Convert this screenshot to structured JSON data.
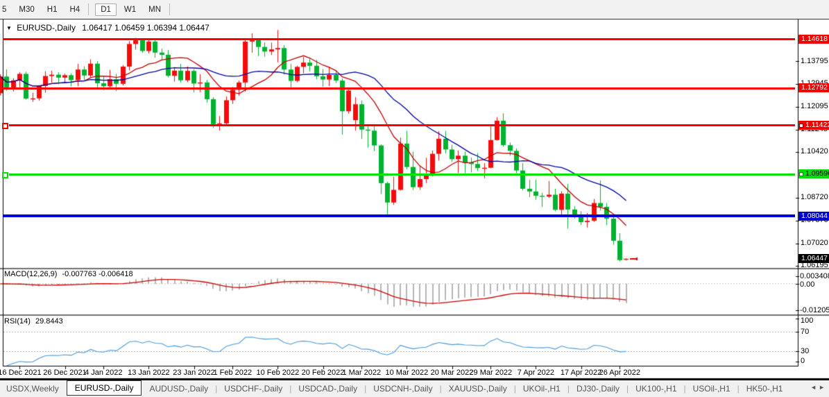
{
  "toolbar": {
    "timeframes": [
      "5",
      "M30",
      "H1",
      "H4",
      "D1",
      "W1",
      "MN"
    ],
    "active_timeframe": "D1"
  },
  "chart": {
    "title_symbol": "EURUSD-,Daily",
    "title_ohlc": "1.06417 1.06459 1.06394 1.06447"
  },
  "macd_panel": {
    "label": "MACD(12,26,9)",
    "values": "-0.007763 -0.006418",
    "axis_ticks": [
      "0.003408",
      "0.00",
      "-0.012058"
    ]
  },
  "rsi_panel": {
    "label": "RSI(14)",
    "value": "29.8443",
    "axis_ticks": [
      "100",
      "70",
      "30",
      "0"
    ]
  },
  "price_axis": {
    "plain_ticks": [
      "1.13795",
      "1.12945",
      "1.12095",
      "1.11245",
      "1.10420",
      "1.08720",
      "1.07870",
      "1.07020",
      "1.06195"
    ],
    "line_labels": [
      {
        "text": "1.14618",
        "bg": "#f40000",
        "fg": "#ffffff",
        "value": 1.14618,
        "handle": false
      },
      {
        "text": "1.12792",
        "bg": "#f40000",
        "fg": "#ffffff",
        "value": 1.12792,
        "handle": false
      },
      {
        "text": "1.11422",
        "bg": "#f40000",
        "fg": "#ffffff",
        "value": 1.11422,
        "handle": true
      },
      {
        "text": "1.09596",
        "bg": "#00dd00",
        "fg": "#000000",
        "value": 1.09596,
        "handle": true
      },
      {
        "text": "1.08044",
        "bg": "#0202d6",
        "fg": "#ffffff",
        "value": 1.08044,
        "handle": false
      },
      {
        "text": "1.06447",
        "bg": "#000000",
        "fg": "#ffffff",
        "value": 1.06447,
        "handle": false
      }
    ]
  },
  "tabs": {
    "items": [
      "USDX,Weekly",
      "EURUSD-,Daily",
      "AUDUSD-,Daily",
      "USDCHF-,Daily",
      "USDCAD-,Daily",
      "USDCNH-,Daily",
      "XAUUSD-,Daily",
      "UKOil-,H1",
      "DJ30-,Daily",
      "UK100-,H1",
      "USOil-,H1",
      "HK50-,H1"
    ],
    "active_index": 1,
    "arrows": [
      "◄",
      "►"
    ]
  },
  "chart_data": {
    "type": "candlestick",
    "symbol": "EURUSD-",
    "timeframe": "Daily",
    "up_color": "#f40b0b",
    "down_color": "#00b22d",
    "candles": [
      [
        1.126,
        1.133,
        1.1252,
        1.1322
      ],
      [
        1.1322,
        1.1349,
        1.127,
        1.128
      ],
      [
        1.128,
        1.1316,
        1.1266,
        1.1308
      ],
      [
        1.1308,
        1.1338,
        1.1281,
        1.1332
      ],
      [
        1.1332,
        1.134,
        1.1236,
        1.124
      ],
      [
        1.124,
        1.1262,
        1.1228,
        1.1241
      ],
      [
        1.1241,
        1.129,
        1.1233,
        1.1287
      ],
      [
        1.1287,
        1.1342,
        1.1262,
        1.1324
      ],
      [
        1.1324,
        1.1344,
        1.1299,
        1.1329
      ],
      [
        1.1329,
        1.1338,
        1.1294,
        1.1318
      ],
      [
        1.1318,
        1.1333,
        1.1302,
        1.1327
      ],
      [
        1.1327,
        1.1334,
        1.1285,
        1.1309
      ],
      [
        1.1309,
        1.1369,
        1.1286,
        1.1348
      ],
      [
        1.1348,
        1.136,
        1.131,
        1.1326
      ],
      [
        1.1326,
        1.1386,
        1.132,
        1.137
      ],
      [
        1.137,
        1.1379,
        1.1279,
        1.1297
      ],
      [
        1.1297,
        1.1323,
        1.1272,
        1.1286
      ],
      [
        1.1286,
        1.1347,
        1.128,
        1.1312
      ],
      [
        1.1312,
        1.1332,
        1.1268,
        1.1295
      ],
      [
        1.1295,
        1.1365,
        1.1289,
        1.1359
      ],
      [
        1.1359,
        1.1454,
        1.1345,
        1.1443
      ],
      [
        1.1443,
        1.1466,
        1.1422,
        1.1457
      ],
      [
        1.1457,
        1.1464,
        1.141,
        1.1417
      ],
      [
        1.1417,
        1.146,
        1.1408,
        1.1452
      ],
      [
        1.1452,
        1.1459,
        1.1392,
        1.1411
      ],
      [
        1.1411,
        1.1426,
        1.1385,
        1.1403
      ],
      [
        1.1403,
        1.1421,
        1.1319,
        1.1325
      ],
      [
        1.1325,
        1.1357,
        1.1303,
        1.1344
      ],
      [
        1.1344,
        1.1369,
        1.13,
        1.1308
      ],
      [
        1.1308,
        1.136,
        1.1301,
        1.1343
      ],
      [
        1.1343,
        1.1349,
        1.1263,
        1.1296
      ],
      [
        1.1296,
        1.1331,
        1.1264,
        1.13
      ],
      [
        1.13,
        1.131,
        1.1225,
        1.1238
      ],
      [
        1.1238,
        1.1245,
        1.1131,
        1.1145
      ],
      [
        1.1145,
        1.1175,
        1.1121,
        1.1148
      ],
      [
        1.1148,
        1.1248,
        1.1141,
        1.1234
      ],
      [
        1.1234,
        1.1283,
        1.122,
        1.1273
      ],
      [
        1.1273,
        1.1307,
        1.1251,
        1.13
      ],
      [
        1.13,
        1.1465,
        1.1266,
        1.1452
      ],
      [
        1.1452,
        1.1483,
        1.1411,
        1.1458
      ],
      [
        1.1458,
        1.1462,
        1.1398,
        1.1432
      ],
      [
        1.1432,
        1.1449,
        1.1396,
        1.1415
      ],
      [
        1.1415,
        1.1448,
        1.1402,
        1.1423
      ],
      [
        1.1423,
        1.1495,
        1.1375,
        1.1428
      ],
      [
        1.1428,
        1.1439,
        1.1329,
        1.1348
      ],
      [
        1.1348,
        1.1369,
        1.128,
        1.1306
      ],
      [
        1.1306,
        1.1362,
        1.1301,
        1.1358
      ],
      [
        1.1358,
        1.1395,
        1.1334,
        1.1374
      ],
      [
        1.1374,
        1.1392,
        1.1341,
        1.1362
      ],
      [
        1.1362,
        1.1384,
        1.1312,
        1.1323
      ],
      [
        1.1323,
        1.135,
        1.1284,
        1.1311
      ],
      [
        1.1311,
        1.1359,
        1.1287,
        1.1328
      ],
      [
        1.1328,
        1.1344,
        1.1298,
        1.1307
      ],
      [
        1.1307,
        1.1315,
        1.1106,
        1.1193
      ],
      [
        1.1193,
        1.1274,
        1.1184,
        1.127
      ],
      [
        1.116,
        1.1246,
        1.1121,
        1.1219
      ],
      [
        1.1219,
        1.1233,
        1.109,
        1.1125
      ],
      [
        1.1125,
        1.1144,
        1.1058,
        1.1121
      ],
      [
        1.1121,
        1.1139,
        1.1045,
        1.1066
      ],
      [
        1.1066,
        1.107,
        1.0885,
        1.0926
      ],
      [
        1.0926,
        1.0931,
        1.0806,
        1.0854
      ],
      [
        1.0854,
        1.095,
        1.0845,
        1.0901
      ],
      [
        1.0901,
        1.1095,
        1.0899,
        1.1073
      ],
      [
        1.1073,
        1.1121,
        1.0977,
        1.0986
      ],
      [
        1.0986,
        1.1043,
        1.09,
        1.0911
      ],
      [
        1.0911,
        1.0992,
        1.0901,
        1.0941
      ],
      [
        1.0941,
        1.102,
        1.0926,
        1.0955
      ],
      [
        1.0955,
        1.1047,
        1.0951,
        1.1035
      ],
      [
        1.1035,
        1.1119,
        1.101,
        1.1091
      ],
      [
        1.1091,
        1.112,
        1.1037,
        1.1051
      ],
      [
        1.1051,
        1.1069,
        1.1005,
        1.1015
      ],
      [
        1.1015,
        1.1047,
        1.0963,
        1.1028
      ],
      [
        1.1028,
        1.1044,
        1.0963,
        1.1003
      ],
      [
        1.1003,
        1.1021,
        1.0966,
        1.0997
      ],
      [
        1.0997,
        1.1038,
        1.0971,
        1.0982
      ],
      [
        1.0982,
        1.1,
        1.0944,
        1.0983
      ],
      [
        1.0983,
        1.1137,
        1.0981,
        1.1086
      ],
      [
        1.1086,
        1.1171,
        1.1084,
        1.1158
      ],
      [
        1.1158,
        1.1185,
        1.1061,
        1.1067
      ],
      [
        1.1067,
        1.1077,
        1.1028,
        1.1046
      ],
      [
        1.1046,
        1.1055,
        1.0963,
        1.0973
      ],
      [
        1.0973,
        1.1,
        1.0899,
        1.0905
      ],
      [
        1.0905,
        1.0938,
        1.0874,
        1.0895
      ],
      [
        1.0895,
        1.0939,
        1.0864,
        1.0879
      ],
      [
        1.0879,
        1.089,
        1.0837,
        1.0876
      ],
      [
        1.0876,
        1.0934,
        1.0871,
        1.0883
      ],
      [
        1.0883,
        1.0905,
        1.0821,
        1.0827
      ],
      [
        1.0827,
        1.0896,
        1.0808,
        1.0887
      ],
      [
        1.0887,
        1.0923,
        1.0757,
        1.0828
      ],
      [
        1.0828,
        1.084,
        1.0795,
        1.0808
      ],
      [
        1.0808,
        1.0822,
        1.077,
        1.0781
      ],
      [
        1.0781,
        1.0815,
        1.0761,
        1.0786
      ],
      [
        1.0786,
        1.0867,
        1.0782,
        1.0852
      ],
      [
        1.0852,
        1.0936,
        1.0824,
        1.0838
      ],
      [
        1.0838,
        1.0852,
        1.077,
        1.0794
      ],
      [
        1.0794,
        1.081,
        1.0697,
        1.0712
      ],
      [
        1.0712,
        1.074,
        1.0635,
        1.064
      ],
      [
        1.0642,
        1.0646,
        1.0639,
        1.0645
      ]
    ],
    "moving_averages": [
      {
        "name": "fast-ma",
        "period": 10,
        "color": "#c00000"
      },
      {
        "name": "slow-ma",
        "period": 21,
        "color": "#0000a0"
      }
    ],
    "horizontal_lines": [
      {
        "value": 1.14618,
        "color": "#ff0000",
        "thickness": 3,
        "handle": false
      },
      {
        "value": 1.12792,
        "color": "#ff0000",
        "thickness": 3,
        "handle": false
      },
      {
        "value": 1.11422,
        "color": "#ff0000",
        "thickness": 3,
        "handle": true
      },
      {
        "value": 1.09596,
        "color": "#00e400",
        "thickness": 3,
        "handle": true
      },
      {
        "value": 1.08044,
        "color": "#0000dd",
        "thickness": 4,
        "handle": false
      }
    ],
    "current_price": 1.06447,
    "indicators": {
      "macd": {
        "params": [
          12,
          26,
          9
        ],
        "current_macd": -0.007763,
        "current_signal": -0.006418,
        "axis_max": 0.003408,
        "axis_min": -0.012058,
        "histogram_color": "#b5b5b5",
        "signal_color": "#cc0000"
      },
      "rsi": {
        "period": 14,
        "current": 29.8443,
        "levels": [
          70,
          30
        ],
        "line_color": "#4499dd",
        "range": [
          0,
          100
        ]
      }
    },
    "x_axis": {
      "tick_dates": [
        {
          "label": "16 Dec 2021",
          "index": 3
        },
        {
          "label": "26 Dec 2021",
          "index": 10
        },
        {
          "label": "4 Jan 2022",
          "index": 16
        },
        {
          "label": "13 Jan 2022",
          "index": 23
        },
        {
          "label": "23 Jan 2022",
          "index": 30
        },
        {
          "label": "1 Feb 2022",
          "index": 36
        },
        {
          "label": "10 Feb 2022",
          "index": 43
        },
        {
          "label": "20 Feb 2022",
          "index": 50
        },
        {
          "label": "1 Mar 2022",
          "index": 56
        },
        {
          "label": "10 Mar 2022",
          "index": 63
        },
        {
          "label": "20 Mar 2022",
          "index": 70
        },
        {
          "label": "29 Mar 2022",
          "index": 76
        },
        {
          "label": "7 Apr 2022",
          "index": 83
        },
        {
          "label": "17 Apr 2022",
          "index": 90
        },
        {
          "label": "26 Apr 2022",
          "index": 96
        }
      ]
    },
    "y_axis": {
      "price_max_top": 1.1493,
      "price_min_bottom": 1.0611
    }
  }
}
